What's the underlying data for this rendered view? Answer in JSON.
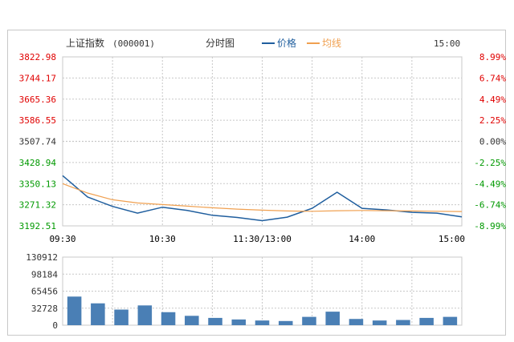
{
  "header": {
    "index_name": "上证指数",
    "index_code": "(000001)",
    "chart_mode": "分时图",
    "legend_price": "价格",
    "legend_avg": "均线",
    "time_label": "15:00"
  },
  "colors": {
    "up": "#e00000",
    "down": "#009900",
    "neutral": "#333333",
    "price_line": "#1f5e9e",
    "avg_line": "#f0a050",
    "volume_bar": "#4a7fb5",
    "grid": "#c8c8c8"
  },
  "chart_data": [
    {
      "type": "line",
      "xlabel": "",
      "ylabel": "",
      "x_ticks": [
        "09:30",
        "10:30",
        "11:30/13:00",
        "14:00",
        "15:00"
      ],
      "y_ticks": [
        "3822.98",
        "3744.17",
        "3665.36",
        "3586.55",
        "3507.74",
        "3428.94",
        "3350.13",
        "3271.32",
        "3192.51"
      ],
      "y_right_ticks": [
        "8.99%",
        "6.74%",
        "4.49%",
        "2.25%",
        "0.00%",
        "-2.25%",
        "-4.49%",
        "-6.74%",
        "-8.99%"
      ],
      "ylim": [
        3192.51,
        3822.98
      ],
      "x": [
        "09:30",
        "09:45",
        "10:00",
        "10:15",
        "10:30",
        "10:45",
        "11:00",
        "11:15",
        "11:30/13:00",
        "13:15",
        "13:30",
        "13:45",
        "14:00",
        "14:15",
        "14:30",
        "14:45",
        "15:00"
      ],
      "series": [
        {
          "name": "价格",
          "values": [
            3380,
            3300,
            3265,
            3240,
            3262,
            3250,
            3232,
            3224,
            3212,
            3225,
            3258,
            3318,
            3258,
            3252,
            3243,
            3240,
            3226
          ]
        },
        {
          "name": "均线",
          "values": [
            3350,
            3315,
            3290,
            3278,
            3272,
            3266,
            3260,
            3255,
            3251,
            3248,
            3247,
            3249,
            3250,
            3249,
            3248,
            3247,
            3246
          ]
        }
      ]
    },
    {
      "type": "bar",
      "y_ticks": [
        "130912",
        "98184",
        "65456",
        "32728",
        "0"
      ],
      "ylim": [
        0,
        130912
      ],
      "categories": [
        "09:30",
        "09:45",
        "10:00",
        "10:15",
        "10:30",
        "10:45",
        "11:00",
        "11:15",
        "11:30/13:00",
        "13:15",
        "13:30",
        "13:45",
        "14:00",
        "14:15",
        "14:30",
        "14:45",
        "15:00"
      ],
      "values": [
        55000,
        42000,
        30000,
        38000,
        25000,
        18000,
        14000,
        11000,
        9000,
        8000,
        16000,
        26000,
        12000,
        9000,
        10000,
        14000,
        16000
      ]
    }
  ]
}
